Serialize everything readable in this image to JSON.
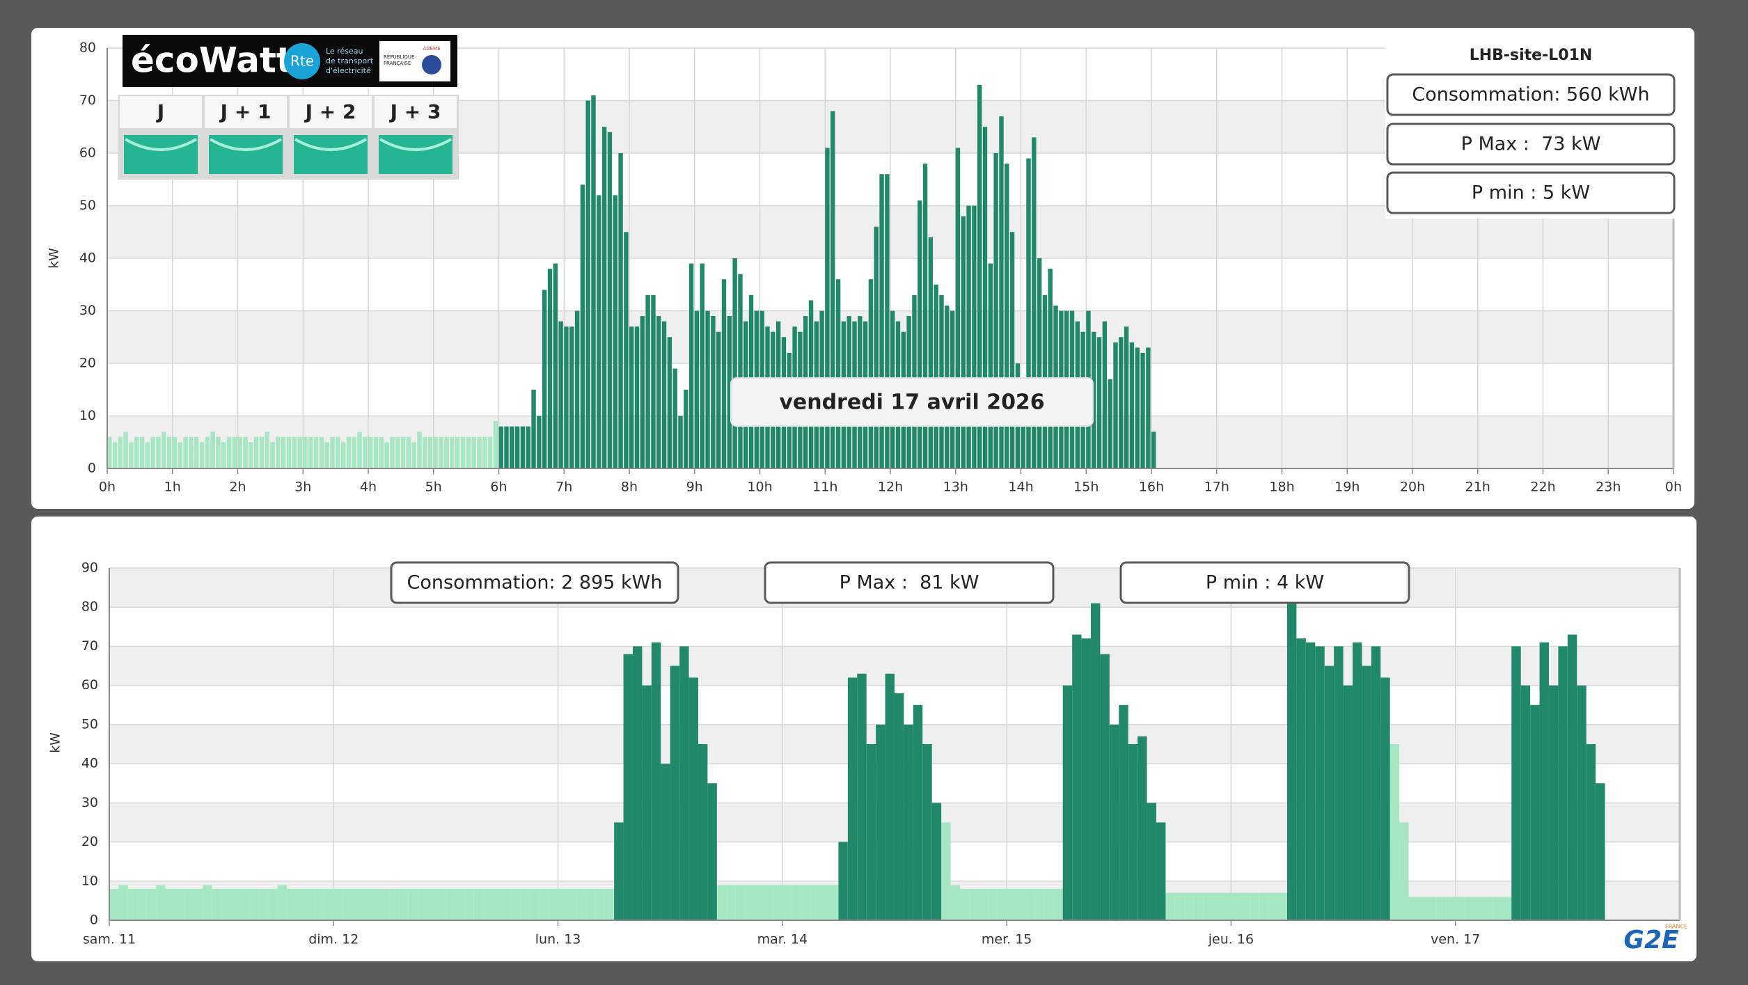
{
  "ecowatt": {
    "logo": "écoWatt",
    "rte": "Rte",
    "rte_tagline": [
      "Le réseau",
      "de transport",
      "d'électricité"
    ],
    "republique": [
      "RÉPUBLIQUE",
      "FRANÇAISE"
    ],
    "ademe": "ADEME",
    "days": [
      "J",
      "J + 1",
      "J + 2",
      "J + 3"
    ]
  },
  "site": "LHB-site-L01N",
  "g2e": {
    "name": "G2E",
    "country": "FRANCE"
  },
  "chart_data": [
    {
      "type": "bar",
      "ylabel": "kW",
      "annotation": "vendredi 17 avril 2026",
      "stats": [
        "Consommation: 560 kWh",
        "P Max :  73 kW",
        "P min : 5 kW"
      ],
      "xlim": [
        0,
        1440
      ],
      "ylim": [
        0,
        80
      ],
      "grid": true,
      "yticks": [
        0,
        10,
        20,
        30,
        40,
        50,
        60,
        70,
        80
      ],
      "xticks": [
        {
          "value": 0,
          "label": "0h"
        },
        {
          "value": 60,
          "label": "1h"
        },
        {
          "value": 120,
          "label": "2h"
        },
        {
          "value": 180,
          "label": "3h"
        },
        {
          "value": 240,
          "label": "4h"
        },
        {
          "value": 300,
          "label": "5h"
        },
        {
          "value": 360,
          "label": "6h"
        },
        {
          "value": 420,
          "label": "7h"
        },
        {
          "value": 480,
          "label": "8h"
        },
        {
          "value": 540,
          "label": "9h"
        },
        {
          "value": 600,
          "label": "10h"
        },
        {
          "value": 660,
          "label": "11h"
        },
        {
          "value": 720,
          "label": "12h"
        },
        {
          "value": 780,
          "label": "13h"
        },
        {
          "value": 840,
          "label": "14h"
        },
        {
          "value": 900,
          "label": "15h"
        },
        {
          "value": 960,
          "label": "16h"
        },
        {
          "value": 1020,
          "label": "17h"
        },
        {
          "value": 1080,
          "label": "18h"
        },
        {
          "value": 1140,
          "label": "19h"
        },
        {
          "value": 1200,
          "label": "20h"
        },
        {
          "value": 1260,
          "label": "21h"
        },
        {
          "value": 1320,
          "label": "22h"
        },
        {
          "value": 1380,
          "label": "23h"
        },
        {
          "value": 1440,
          "label": "0h"
        }
      ],
      "series": [
        {
          "color": "#a6e6c3",
          "x": [
            0,
            5,
            10,
            15,
            20,
            25,
            30,
            35,
            40,
            45,
            50,
            55,
            60,
            65,
            70,
            75,
            80,
            85,
            90,
            95,
            100,
            105,
            110,
            115,
            120,
            125,
            130,
            135,
            140,
            145,
            150,
            155,
            160,
            165,
            170,
            175,
            180,
            185,
            190,
            195,
            200,
            205,
            210,
            215,
            220,
            225,
            230,
            235,
            240,
            245,
            250,
            255,
            260,
            265,
            270,
            275,
            280,
            285,
            290,
            295,
            300,
            305,
            310,
            315,
            320,
            325,
            330,
            335,
            340,
            345,
            350,
            355
          ],
          "values": [
            6,
            5,
            6,
            7,
            5,
            6,
            6,
            5,
            6,
            6,
            7,
            6,
            6,
            5,
            6,
            6,
            6,
            5,
            6,
            7,
            6,
            5,
            6,
            6,
            6,
            6,
            5,
            6,
            6,
            7,
            5,
            6,
            6,
            6,
            6,
            6,
            6,
            6,
            6,
            6,
            5,
            6,
            6,
            5,
            6,
            6,
            7,
            6,
            6,
            6,
            6,
            5,
            6,
            6,
            6,
            6,
            5,
            7,
            6,
            6,
            6,
            6,
            6,
            6,
            6,
            6,
            6,
            6,
            6,
            6,
            6,
            9
          ]
        },
        {
          "color": "#21896a",
          "x": [
            360,
            365,
            370,
            375,
            380,
            385,
            390,
            395,
            400,
            405,
            410,
            415,
            420,
            425,
            430,
            435,
            440,
            445,
            450,
            455,
            460,
            465,
            470,
            475,
            480,
            485,
            490,
            495,
            500,
            505,
            510,
            515,
            520,
            525,
            530,
            535,
            540,
            545,
            550,
            555,
            560,
            565,
            570,
            575,
            580,
            585,
            590,
            595,
            600,
            605,
            610,
            615,
            620,
            625,
            630,
            635,
            640,
            645,
            650,
            655,
            660,
            665,
            670,
            675,
            680,
            685,
            690,
            695,
            700,
            705,
            710,
            715,
            720,
            725,
            730,
            735,
            740,
            745,
            750,
            755,
            760,
            765,
            770,
            775,
            780,
            785,
            790,
            795,
            800,
            805,
            810,
            815,
            820,
            825,
            830,
            835,
            840,
            845,
            850,
            855,
            860,
            865,
            870,
            875,
            880,
            885,
            890,
            895,
            900,
            905,
            910,
            915,
            920,
            925,
            930,
            935,
            940,
            945,
            950,
            955,
            960
          ],
          "values": [
            8,
            8,
            8,
            8,
            8,
            8,
            15,
            10,
            34,
            38,
            39,
            28,
            27,
            27,
            30,
            54,
            70,
            71,
            52,
            65,
            64,
            52,
            60,
            45,
            27,
            27,
            29,
            33,
            33,
            29,
            28,
            25,
            19,
            10,
            15,
            39,
            30,
            39,
            30,
            29,
            26,
            36,
            29,
            40,
            37,
            28,
            33,
            30,
            30,
            27,
            26,
            28,
            25,
            22,
            27,
            26,
            29,
            32,
            28,
            30,
            61,
            68,
            36,
            28,
            29,
            28,
            29,
            28,
            36,
            46,
            56,
            56,
            30,
            28,
            26,
            29,
            33,
            51,
            58,
            44,
            35,
            33,
            31,
            30,
            61,
            48,
            50,
            50,
            73,
            65,
            39,
            60,
            67,
            58,
            45,
            20,
            14,
            59,
            63,
            40,
            33,
            38,
            31,
            30,
            30,
            30,
            28,
            26,
            30,
            26,
            25,
            28,
            17,
            24,
            25,
            27,
            24,
            23,
            22,
            23,
            7
          ]
        }
      ]
    },
    {
      "type": "bar",
      "ylabel": "kW",
      "stats": [
        "Consommation: 2 895 kWh",
        "P Max :  81 kW",
        "P min : 4 kW"
      ],
      "xlim": [
        0,
        168
      ],
      "ylim": [
        0,
        90
      ],
      "grid": true,
      "yticks": [
        0,
        10,
        20,
        30,
        40,
        50,
        60,
        70,
        80,
        90
      ],
      "xticks": [
        {
          "value": 0,
          "label": "sam. 11"
        },
        {
          "value": 24,
          "label": "dim. 12"
        },
        {
          "value": 48,
          "label": "lun. 13"
        },
        {
          "value": 72,
          "label": "mar. 14"
        },
        {
          "value": 96,
          "label": "mer. 15"
        },
        {
          "value": 120,
          "label": "jeu. 16"
        },
        {
          "value": 144,
          "label": "ven. 17"
        }
      ],
      "series": [
        {
          "color": "#a6e6c3",
          "x": [
            0,
            1,
            2,
            3,
            4,
            5,
            6,
            7,
            8,
            9,
            10,
            11,
            12,
            13,
            14,
            15,
            16,
            17,
            18,
            19,
            20,
            21,
            22,
            23,
            24,
            25,
            26,
            27,
            28,
            29,
            30,
            31,
            32,
            33,
            34,
            35,
            36,
            37,
            38,
            39,
            40,
            41,
            42,
            43,
            44,
            45,
            46,
            47,
            48,
            49,
            50,
            51,
            52,
            53,
            65,
            66,
            67,
            68,
            69,
            70,
            71,
            72,
            73,
            74,
            75,
            76,
            77,
            89,
            90,
            91,
            92,
            93,
            94,
            95,
            96,
            97,
            98,
            99,
            100,
            101,
            113,
            114,
            115,
            116,
            117,
            118,
            119,
            120,
            121,
            122,
            123,
            124,
            125,
            137,
            138,
            139,
            140,
            141,
            142,
            143,
            144,
            145,
            146,
            147,
            148,
            149
          ],
          "values": [
            8,
            9,
            8,
            8,
            8,
            9,
            8,
            8,
            8,
            8,
            9,
            8,
            8,
            8,
            8,
            8,
            8,
            8,
            9,
            8,
            8,
            8,
            8,
            8,
            8,
            8,
            8,
            8,
            8,
            8,
            8,
            8,
            8,
            8,
            8,
            8,
            8,
            8,
            8,
            8,
            8,
            8,
            8,
            8,
            8,
            8,
            8,
            8,
            8,
            8,
            8,
            8,
            8,
            8,
            9,
            9,
            9,
            9,
            9,
            9,
            9,
            9,
            9,
            9,
            9,
            9,
            9,
            25,
            9,
            8,
            8,
            8,
            8,
            8,
            8,
            8,
            8,
            8,
            8,
            8,
            7,
            7,
            7,
            7,
            7,
            7,
            7,
            7,
            7,
            7,
            7,
            7,
            7,
            45,
            25,
            6,
            6,
            6,
            6,
            6,
            6,
            6,
            6,
            6,
            6,
            6
          ]
        },
        {
          "color": "#21896a",
          "x": [
            54,
            55,
            56,
            57,
            58,
            59,
            60,
            61,
            62,
            63,
            64,
            78,
            79,
            80,
            81,
            82,
            83,
            84,
            85,
            86,
            87,
            88,
            102,
            103,
            104,
            105,
            106,
            107,
            108,
            109,
            110,
            111,
            112,
            126,
            127,
            128,
            129,
            130,
            131,
            132,
            133,
            134,
            135,
            136,
            150,
            151,
            152,
            153,
            154,
            155,
            156,
            157,
            158,
            159
          ],
          "values": [
            25,
            68,
            70,
            60,
            71,
            40,
            65,
            70,
            62,
            45,
            35,
            20,
            62,
            63,
            45,
            50,
            63,
            58,
            50,
            55,
            45,
            30,
            60,
            73,
            72,
            81,
            68,
            50,
            55,
            45,
            47,
            30,
            25,
            81,
            72,
            71,
            70,
            65,
            70,
            60,
            71,
            65,
            70,
            62,
            70,
            60,
            55,
            71,
            60,
            70,
            73,
            60,
            45,
            35
          ]
        }
      ]
    }
  ]
}
